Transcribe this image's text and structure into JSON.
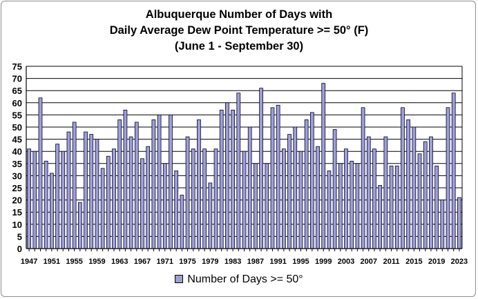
{
  "chart_data": {
    "type": "bar",
    "title": [
      "Albuquerque Number of Days with",
      "Daily Average Dew Point Temperature >= 50° (F)",
      "(June 1 - September 30)"
    ],
    "xlabel": "",
    "ylabel": "",
    "ylim": [
      0,
      75
    ],
    "yticks": [
      0,
      5,
      10,
      15,
      20,
      25,
      30,
      35,
      40,
      45,
      50,
      55,
      60,
      65,
      70,
      75
    ],
    "grid": true,
    "legend_position": "bottom",
    "colors": {
      "bar_fill": "#9f9fd3",
      "bar_stroke": "#000033",
      "plot_bg": "#ffffff",
      "grid": "#000000"
    },
    "x_tick_labels": [
      "1947",
      "1951",
      "1955",
      "1959",
      "1963",
      "1967",
      "1971",
      "1975",
      "1979",
      "1983",
      "1987",
      "1991",
      "1995",
      "1999",
      "2003",
      "2007",
      "2011",
      "2015",
      "2019",
      "2023"
    ],
    "categories": [
      "1947",
      "1948",
      "1949",
      "1950",
      "1951",
      "1952",
      "1953",
      "1954",
      "1955",
      "1956",
      "1957",
      "1958",
      "1959",
      "1960",
      "1961",
      "1962",
      "1963",
      "1964",
      "1965",
      "1966",
      "1967",
      "1968",
      "1969",
      "1970",
      "1971",
      "1972",
      "1973",
      "1974",
      "1975",
      "1976",
      "1977",
      "1978",
      "1979",
      "1980",
      "1981",
      "1982",
      "1983",
      "1984",
      "1985",
      "1986",
      "1987",
      "1988",
      "1989",
      "1990",
      "1991",
      "1992",
      "1993",
      "1994",
      "1995",
      "1996",
      "1997",
      "1998",
      "1999",
      "2000",
      "2001",
      "2002",
      "2003",
      "2004",
      "2005",
      "2006",
      "2007",
      "2008",
      "2009",
      "2010",
      "2011",
      "2012",
      "2013",
      "2014",
      "2015",
      "2016",
      "2017",
      "2018",
      "2019",
      "2020",
      "2021",
      "2022",
      "2023"
    ],
    "series": [
      {
        "name": "Number of Days >= 50°",
        "values": [
          41,
          40,
          62,
          36,
          31,
          43,
          40,
          48,
          52,
          19,
          48,
          47,
          45,
          33,
          38,
          41,
          53,
          57,
          46,
          52,
          37,
          42,
          53,
          55,
          35,
          55,
          32,
          22,
          46,
          41,
          53,
          41,
          27,
          41,
          57,
          60,
          57,
          64,
          40,
          50,
          35,
          66,
          35,
          58,
          59,
          41,
          47,
          50,
          40,
          53,
          56,
          42,
          68,
          32,
          49,
          35,
          41,
          36,
          35,
          58,
          46,
          41,
          26,
          46,
          34,
          34,
          58,
          53,
          50,
          39,
          44,
          46,
          34,
          20,
          58,
          64,
          21
        ]
      }
    ]
  }
}
